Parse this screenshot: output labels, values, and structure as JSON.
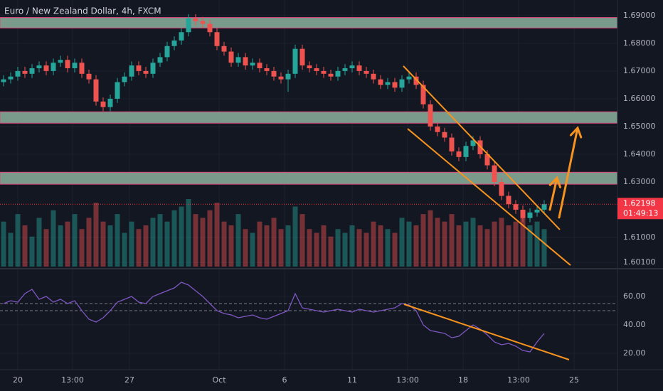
{
  "chart_data": {
    "type": "candlestick",
    "title": "Euro / New Zealand Dollar, 4h, FXCM",
    "up_color": "#26a69a",
    "down_color": "#ef5350",
    "open": [
      1.666,
      1.667,
      1.668,
      1.67,
      1.669,
      1.671,
      1.672,
      1.67,
      1.673,
      1.674,
      1.671,
      1.673,
      1.669,
      1.667,
      1.659,
      1.657,
      1.66,
      1.666,
      1.668,
      1.672,
      1.67,
      1.669,
      1.673,
      1.675,
      1.679,
      1.681,
      1.684,
      1.689,
      1.688,
      1.687,
      1.684,
      1.679,
      1.677,
      1.673,
      1.675,
      1.672,
      1.673,
      1.671,
      1.67,
      1.668,
      1.667,
      1.669,
      1.678,
      1.672,
      1.671,
      1.67,
      1.669,
      1.668,
      1.67,
      1.671,
      1.672,
      1.67,
      1.669,
      1.667,
      1.665,
      1.666,
      1.664,
      1.667,
      1.668,
      1.665,
      1.658,
      1.65,
      1.648,
      1.646,
      1.641,
      1.639,
      1.643,
      1.645,
      1.64,
      1.636,
      1.63,
      1.625,
      1.622,
      1.62,
      1.617,
      1.619,
      1.62
    ],
    "high": [
      1.6685,
      1.6695,
      1.6715,
      1.6715,
      1.6725,
      1.6735,
      1.6735,
      1.6745,
      1.6755,
      1.6755,
      1.6745,
      1.6745,
      1.6705,
      1.6685,
      1.6605,
      1.6615,
      1.6675,
      1.6695,
      1.6735,
      1.6735,
      1.6715,
      1.6745,
      1.6765,
      1.6805,
      1.6825,
      1.6855,
      1.6905,
      1.6905,
      1.6895,
      1.6885,
      1.6855,
      1.6805,
      1.6785,
      1.6765,
      1.6765,
      1.6745,
      1.6745,
      1.6725,
      1.6715,
      1.6695,
      1.6705,
      1.6795,
      1.6795,
      1.6735,
      1.6725,
      1.6715,
      1.6705,
      1.6715,
      1.6725,
      1.6735,
      1.6735,
      1.6715,
      1.6705,
      1.6685,
      1.6675,
      1.6675,
      1.6685,
      1.6695,
      1.6695,
      1.6665,
      1.6595,
      1.6515,
      1.6495,
      1.6475,
      1.6425,
      1.6445,
      1.6465,
      1.6465,
      1.6415,
      1.6375,
      1.6315,
      1.6265,
      1.6235,
      1.6215,
      1.6205,
      1.6215,
      1.6235
    ],
    "low": [
      1.6645,
      1.6655,
      1.6665,
      1.6675,
      1.6675,
      1.6695,
      1.6685,
      1.6685,
      1.6715,
      1.6695,
      1.6695,
      1.6675,
      1.6655,
      1.6575,
      1.6555,
      1.6555,
      1.6585,
      1.6645,
      1.6665,
      1.6685,
      1.6675,
      1.6675,
      1.6715,
      1.6735,
      1.6775,
      1.6795,
      1.6825,
      1.6865,
      1.6855,
      1.6825,
      1.6775,
      1.6755,
      1.6715,
      1.6715,
      1.6705,
      1.6705,
      1.6695,
      1.6685,
      1.6665,
      1.6655,
      1.6625,
      1.6675,
      1.6705,
      1.6695,
      1.6685,
      1.6675,
      1.6665,
      1.6665,
      1.6685,
      1.6695,
      1.6685,
      1.6675,
      1.6655,
      1.6635,
      1.6635,
      1.6625,
      1.6625,
      1.6655,
      1.6635,
      1.6565,
      1.6485,
      1.6465,
      1.6445,
      1.6395,
      1.6375,
      1.6375,
      1.6415,
      1.6385,
      1.6345,
      1.6285,
      1.6235,
      1.6205,
      1.6185,
      1.6155,
      1.6155,
      1.6175,
      1.6185
    ],
    "close": [
      1.667,
      1.668,
      1.67,
      1.669,
      1.671,
      1.672,
      1.67,
      1.673,
      1.674,
      1.671,
      1.673,
      1.669,
      1.667,
      1.659,
      1.657,
      1.66,
      1.666,
      1.668,
      1.672,
      1.67,
      1.669,
      1.673,
      1.675,
      1.679,
      1.681,
      1.684,
      1.689,
      1.688,
      1.687,
      1.684,
      1.679,
      1.677,
      1.673,
      1.675,
      1.672,
      1.673,
      1.671,
      1.67,
      1.668,
      1.667,
      1.669,
      1.678,
      1.672,
      1.671,
      1.67,
      1.669,
      1.668,
      1.67,
      1.671,
      1.672,
      1.67,
      1.669,
      1.667,
      1.665,
      1.666,
      1.664,
      1.667,
      1.668,
      1.665,
      1.658,
      1.65,
      1.648,
      1.646,
      1.641,
      1.639,
      1.643,
      1.645,
      1.64,
      1.636,
      1.63,
      1.625,
      1.622,
      1.62,
      1.617,
      1.619,
      1.62,
      1.622
    ],
    "volume": [
      60,
      45,
      70,
      55,
      40,
      65,
      50,
      75,
      55,
      60,
      70,
      50,
      65,
      85,
      60,
      55,
      70,
      45,
      60,
      50,
      55,
      65,
      70,
      60,
      75,
      80,
      90,
      70,
      65,
      75,
      85,
      60,
      55,
      70,
      50,
      45,
      60,
      55,
      65,
      50,
      55,
      80,
      70,
      50,
      45,
      55,
      40,
      50,
      45,
      55,
      50,
      45,
      60,
      55,
      50,
      45,
      65,
      60,
      55,
      70,
      75,
      65,
      60,
      70,
      55,
      60,
      65,
      55,
      50,
      60,
      65,
      55,
      60,
      70,
      55,
      60,
      50
    ],
    "rsi": [
      55,
      57,
      56,
      62,
      65,
      58,
      60,
      56,
      58,
      55,
      57,
      50,
      44,
      42,
      45,
      50,
      56,
      58,
      60,
      56,
      55,
      60,
      62,
      64,
      66,
      70,
      68,
      64,
      60,
      55,
      50,
      48,
      47,
      45,
      46,
      47,
      45,
      44,
      46,
      48,
      50,
      62,
      52,
      51,
      50,
      49,
      50,
      51,
      50,
      49,
      51,
      50,
      49,
      50,
      51,
      52,
      55,
      54,
      50,
      40,
      36,
      35,
      34,
      31,
      32,
      36,
      40,
      37,
      33,
      28,
      26,
      27,
      25,
      22,
      21,
      28,
      34
    ],
    "rsi_color": "#7e57c2",
    "rsi_levels": [
      55,
      50
    ],
    "xlim": [
      -0.5,
      86.3
    ],
    "ylim": [
      1.5995,
      1.6956
    ],
    "y2lim": [
      8.5,
      78.5
    ],
    "xticks": [
      {
        "value": 2,
        "label": "20"
      },
      {
        "value": 9.7,
        "label": "13:00"
      },
      {
        "value": 17.7,
        "label": "27"
      },
      {
        "value": 30.3,
        "label": "Oct"
      },
      {
        "value": 39.5,
        "label": "6"
      },
      {
        "value": 49,
        "label": "11"
      },
      {
        "value": 56.8,
        "label": "13:00"
      },
      {
        "value": 64.6,
        "label": "18"
      },
      {
        "value": 72.4,
        "label": "13:00"
      },
      {
        "value": 80.2,
        "label": "25"
      }
    ],
    "yticks": [
      {
        "value": 1.69,
        "label": "1.69000"
      },
      {
        "value": 1.68,
        "label": "1.68000"
      },
      {
        "value": 1.67,
        "label": "1.67000"
      },
      {
        "value": 1.66,
        "label": "1.66000"
      },
      {
        "value": 1.65,
        "label": "1.65000"
      },
      {
        "value": 1.64,
        "label": "1.64000"
      },
      {
        "value": 1.63,
        "label": "1.63000"
      },
      {
        "value": 1.61,
        "label": "1.61000"
      },
      {
        "value": 1.601,
        "label": "1.60100"
      }
    ],
    "y2ticks": [
      {
        "value": 60,
        "label": "60.00"
      },
      {
        "value": 40,
        "label": "40.00"
      },
      {
        "value": 20,
        "label": "20.00"
      }
    ],
    "last_price": {
      "value": 1.62198,
      "label": "1.62198"
    },
    "countdown": "01:49:13",
    "zones": [
      [
        1.6855,
        1.6893
      ],
      [
        1.6512,
        1.6553
      ],
      [
        1.6292,
        1.6335
      ]
    ],
    "drawing_color": "#f7931e",
    "trendlines": [
      [
        [
          56.2,
          1.6718
        ],
        [
          78.2,
          1.6128
        ]
      ],
      [
        [
          56.8,
          1.6492
        ],
        [
          79.7,
          1.6
        ]
      ]
    ],
    "arrows": [
      [
        [
          76.8,
          1.62
        ],
        [
          77.8,
          1.6315
        ]
      ],
      [
        [
          78.1,
          1.6172
        ],
        [
          80.7,
          1.6495
        ]
      ]
    ],
    "rsi_trendline": [
      [
        56.3,
        54.5
      ],
      [
        79.5,
        15.5
      ]
    ]
  }
}
